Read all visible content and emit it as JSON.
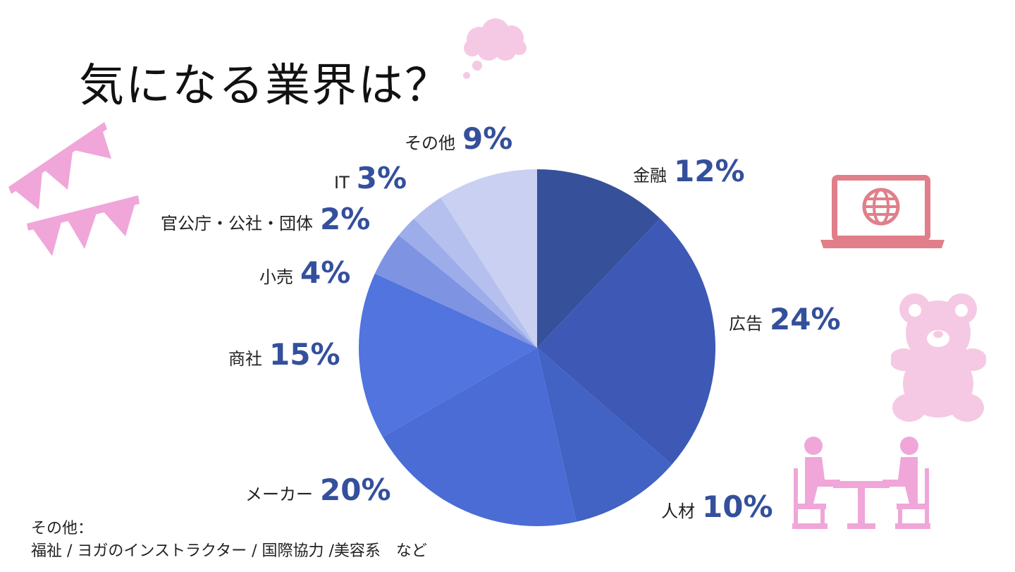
{
  "title": "気になる業界は？",
  "chart_data": {
    "type": "pie",
    "start": "12 o'clock",
    "direction": "clockwise",
    "slices": [
      {
        "label": "金融",
        "value": 12,
        "pct_label": "12%",
        "color": "#36509a"
      },
      {
        "label": "広告",
        "value": 24,
        "pct_label": "24%",
        "color": "#3d59b5"
      },
      {
        "label": "人材",
        "value": 10,
        "pct_label": "10%",
        "color": "#4262c4"
      },
      {
        "label": "メーカー",
        "value": 20,
        "pct_label": "20%",
        "color": "#4a6cd4"
      },
      {
        "label": "商社",
        "value": 15,
        "pct_label": "15%",
        "color": "#5174de"
      },
      {
        "label": "小売",
        "value": 4,
        "pct_label": "4%",
        "color": "#7e93e2"
      },
      {
        "label": "官公庁・公社・団体",
        "value": 2,
        "pct_label": "2%",
        "color": "#9dadea"
      },
      {
        "label": "IT",
        "value": 3,
        "pct_label": "3%",
        "color": "#b6c0ee"
      },
      {
        "label": "その他",
        "value": 9,
        "pct_label": "9%",
        "color": "#c9d0f2"
      }
    ]
  },
  "footnote": {
    "line1": "その他：",
    "line2": "福祉 / ヨガのインストラクター / 国際協力 /美容系　など"
  },
  "decor": {
    "pink": "#f0a6d8",
    "light_pink": "#f5c9e3",
    "laptop_color": "#e07f8a",
    "icons": [
      "bunting-icon",
      "thought-cloud-icon",
      "laptop-globe-icon",
      "teddy-bear-icon",
      "meeting-people-icon"
    ]
  }
}
